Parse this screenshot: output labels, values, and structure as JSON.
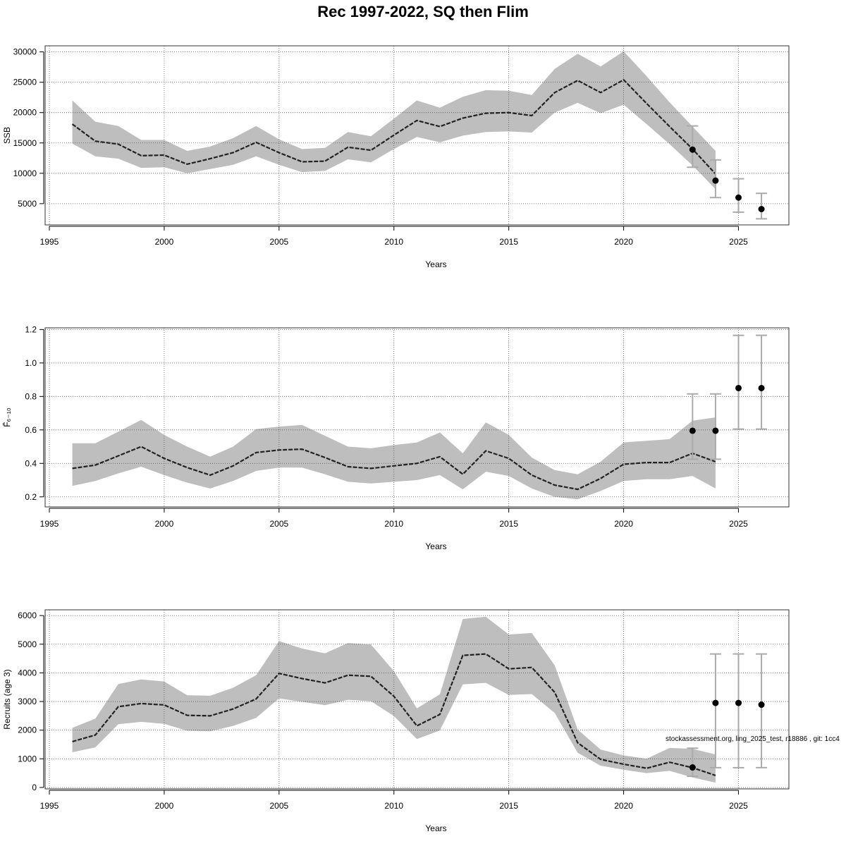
{
  "title": "Rec 1997-2022, SQ then Flim",
  "footnote": "stockassessment.org, ling_2025_test, r18886 , git: 1cc4",
  "colors": {
    "band": "#bebebe",
    "line": "#222222",
    "grid": "#555555",
    "errorbar": "#aaaaaa",
    "point": "#000000"
  },
  "chart_data": [
    {
      "type": "line",
      "ylabel": "SSB",
      "xlabel": "Years",
      "xlim": [
        1995,
        2026
      ],
      "ylim": [
        1500,
        31000
      ],
      "x_ticks": [
        1995,
        2000,
        2005,
        2010,
        2015,
        2020,
        2025
      ],
      "y_ticks": [
        5000,
        10000,
        15000,
        20000,
        25000,
        30000
      ],
      "grid": true,
      "series": [
        {
          "x": [
            1996,
            1997,
            1998,
            1999,
            2000,
            2001,
            2002,
            2003,
            2004,
            2005,
            2006,
            2007,
            2008,
            2009,
            2010,
            2011,
            2012,
            2013,
            2014,
            2015,
            2016,
            2017,
            2018,
            2019,
            2020,
            2021,
            2022,
            2023,
            2024
          ],
          "estimate": [
            18100,
            15300,
            14800,
            12900,
            13000,
            11500,
            12400,
            13400,
            15100,
            13400,
            11900,
            12000,
            14300,
            13800,
            16300,
            18700,
            17700,
            19100,
            19900,
            20000,
            19500,
            23300,
            25300,
            23300,
            25400,
            21500,
            17700,
            14000,
            9900
          ],
          "lower": [
            14900,
            12800,
            12400,
            10900,
            11000,
            10000,
            10700,
            11400,
            12800,
            11400,
            10200,
            10400,
            12300,
            11800,
            14000,
            16000,
            15100,
            16200,
            16800,
            16900,
            16700,
            20000,
            21600,
            19900,
            21300,
            18100,
            14800,
            11300,
            7400
          ],
          "upper": [
            22000,
            18500,
            17800,
            15500,
            15500,
            13700,
            14400,
            15800,
            17800,
            15600,
            14000,
            14200,
            16800,
            16100,
            19000,
            22000,
            20800,
            22600,
            23700,
            23600,
            22900,
            27200,
            29700,
            27600,
            30100,
            26000,
            21700,
            17700,
            13700
          ]
        }
      ],
      "projection": {
        "x": [
          2023,
          2024,
          2025,
          2026
        ],
        "median": [
          13900,
          8800,
          6000,
          4100
        ],
        "lower": [
          11000,
          6000,
          3600,
          2500
        ],
        "upper": [
          17800,
          12200,
          9100,
          6700
        ]
      }
    },
    {
      "type": "line",
      "ylabel": "F̄₆₋₁₀",
      "xlabel": "Years",
      "xlim": [
        1995,
        2026
      ],
      "ylim": [
        0.14,
        1.21
      ],
      "x_ticks": [
        1995,
        2000,
        2005,
        2010,
        2015,
        2020,
        2025
      ],
      "y_ticks": [
        0.2,
        0.4,
        0.6,
        0.8,
        1.0,
        1.2
      ],
      "grid": true,
      "series": [
        {
          "x": [
            1996,
            1997,
            1998,
            1999,
            2000,
            2001,
            2002,
            2003,
            2004,
            2005,
            2006,
            2007,
            2008,
            2009,
            2010,
            2011,
            2012,
            2013,
            2014,
            2015,
            2016,
            2017,
            2018,
            2019,
            2020,
            2021,
            2022,
            2023,
            2024
          ],
          "estimate": [
            0.37,
            0.39,
            0.445,
            0.5,
            0.43,
            0.375,
            0.33,
            0.385,
            0.465,
            0.48,
            0.485,
            0.435,
            0.38,
            0.37,
            0.385,
            0.4,
            0.44,
            0.335,
            0.475,
            0.43,
            0.33,
            0.27,
            0.245,
            0.31,
            0.395,
            0.405,
            0.405,
            0.46,
            0.41
          ],
          "lower": [
            0.265,
            0.295,
            0.34,
            0.38,
            0.33,
            0.285,
            0.25,
            0.295,
            0.355,
            0.375,
            0.375,
            0.335,
            0.29,
            0.28,
            0.29,
            0.3,
            0.33,
            0.245,
            0.35,
            0.325,
            0.25,
            0.2,
            0.185,
            0.235,
            0.295,
            0.305,
            0.305,
            0.325,
            0.25
          ],
          "upper": [
            0.52,
            0.52,
            0.59,
            0.66,
            0.57,
            0.5,
            0.44,
            0.5,
            0.605,
            0.62,
            0.63,
            0.565,
            0.5,
            0.49,
            0.51,
            0.525,
            0.585,
            0.46,
            0.645,
            0.57,
            0.435,
            0.36,
            0.335,
            0.41,
            0.525,
            0.535,
            0.545,
            0.655,
            0.675
          ]
        }
      ],
      "projection": {
        "x": [
          2023,
          2024,
          2025,
          2026
        ],
        "median": [
          0.595,
          0.595,
          0.85,
          0.85
        ],
        "lower": [
          0.425,
          0.425,
          0.605,
          0.605
        ],
        "upper": [
          0.815,
          0.815,
          1.165,
          1.165
        ]
      }
    },
    {
      "type": "line",
      "ylabel": "Recruits (age 3)",
      "xlabel": "Years",
      "xlim": [
        1995,
        2026
      ],
      "ylim": [
        -50,
        6200
      ],
      "x_ticks": [
        1995,
        2000,
        2005,
        2010,
        2015,
        2020,
        2025
      ],
      "y_ticks": [
        0,
        1000,
        2000,
        3000,
        4000,
        5000,
        6000
      ],
      "grid": true,
      "series": [
        {
          "x": [
            1996,
            1997,
            1998,
            1999,
            2000,
            2001,
            2002,
            2003,
            2004,
            2005,
            2006,
            2007,
            2008,
            2009,
            2010,
            2011,
            2012,
            2013,
            2014,
            2015,
            2016,
            2017,
            2018,
            2019,
            2020,
            2021,
            2022,
            2023,
            2024
          ],
          "estimate": [
            1600,
            1830,
            2820,
            2930,
            2880,
            2520,
            2500,
            2740,
            3090,
            3980,
            3800,
            3650,
            3920,
            3880,
            3180,
            2150,
            2550,
            4610,
            4660,
            4140,
            4190,
            3320,
            1560,
            980,
            810,
            670,
            880,
            690,
            420
          ],
          "lower": [
            1230,
            1400,
            2210,
            2290,
            2220,
            1980,
            1960,
            2150,
            2430,
            3110,
            2990,
            2870,
            3060,
            3010,
            2490,
            1690,
            1990,
            3600,
            3650,
            3230,
            3260,
            2600,
            1210,
            760,
            620,
            500,
            580,
            350,
            170
          ],
          "upper": [
            2080,
            2400,
            3610,
            3770,
            3700,
            3220,
            3200,
            3480,
            3920,
            5110,
            4850,
            4680,
            5040,
            4990,
            4060,
            2760,
            3250,
            5880,
            5960,
            5340,
            5390,
            4260,
            2020,
            1320,
            1120,
            1000,
            1380,
            1350,
            1150
          ]
        }
      ],
      "projection": {
        "x": [
          2023,
          2024,
          2025,
          2026
        ],
        "median": [
          700,
          2950,
          2950,
          2890
        ],
        "lower": [
          390,
          690,
          690,
          690
        ],
        "upper": [
          1370,
          4660,
          4660,
          4660
        ]
      }
    }
  ]
}
